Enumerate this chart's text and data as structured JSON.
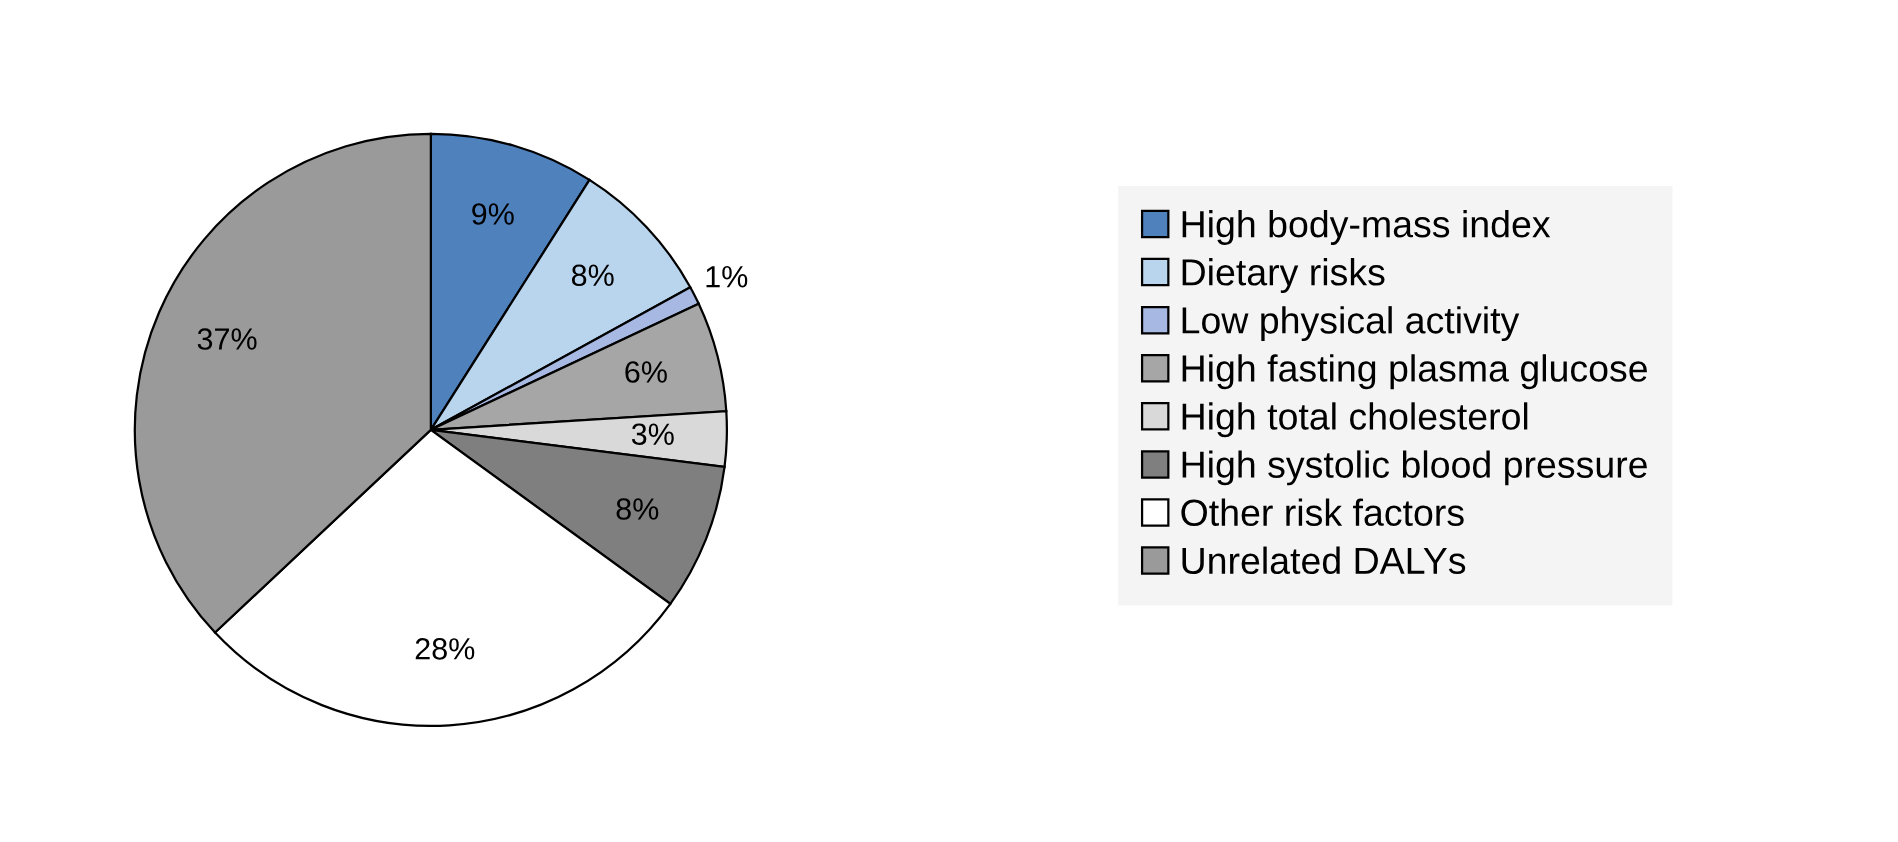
{
  "chart_data": {
    "type": "pie",
    "categories": [
      "High body-mass index",
      "Dietary risks",
      "Low physical activity",
      "High fasting plasma glucose",
      "High total cholesterol",
      "High systolic blood pressure",
      "Other risk factors",
      "Unrelated DALYs"
    ],
    "values": [
      9,
      8,
      1,
      6,
      3,
      8,
      28,
      37
    ],
    "colors": [
      "#4f81bd",
      "#b9d5ee",
      "#a7b9e3",
      "#a6a6a6",
      "#d9d9d9",
      "#7f7f7f",
      "#ffffff",
      "#9a9a9a"
    ],
    "value_labels": [
      "9%",
      "8%",
      "1%",
      "6%",
      "3%",
      "8%",
      "28%",
      "37%"
    ],
    "legend": "right"
  }
}
